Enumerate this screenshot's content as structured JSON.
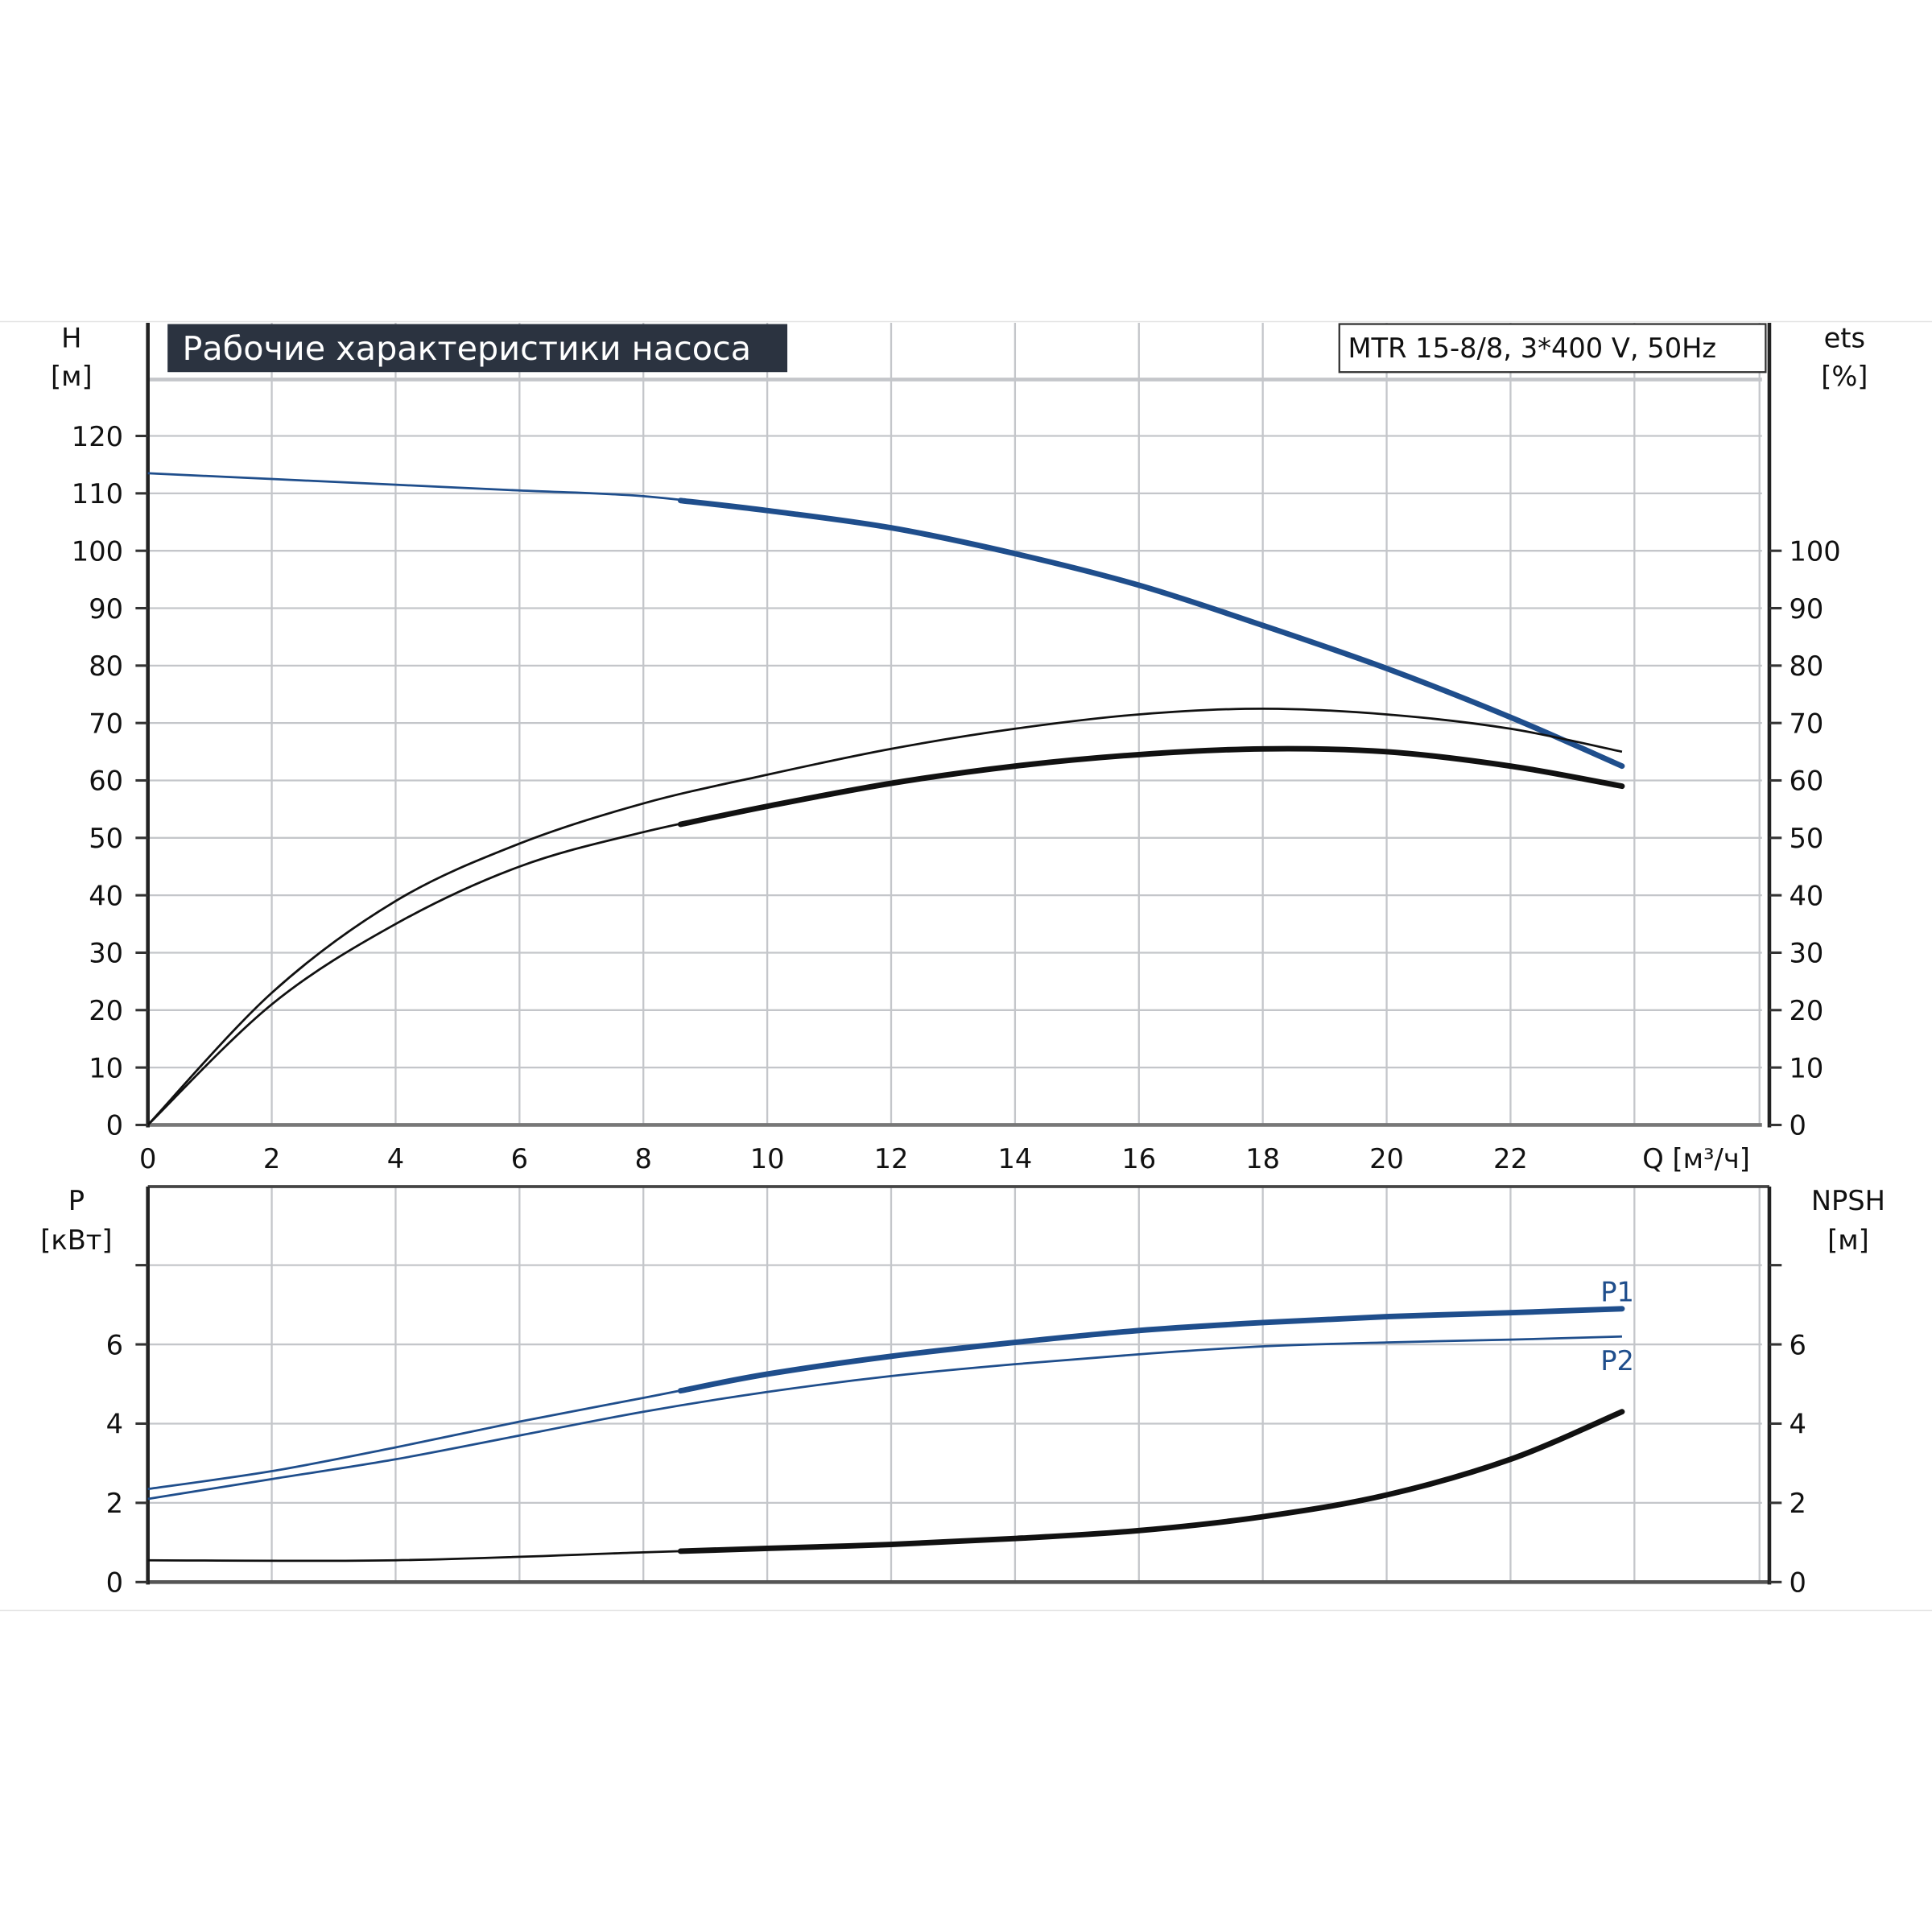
{
  "title": "Рабочие характеристики насоса",
  "model": "MTR 15-8/8, 3*400 V, 50Hz",
  "colors": {
    "blue": "#1f4e8c",
    "black": "#111111",
    "grid": "#c4c6ca",
    "title_bg": "#2b3340"
  },
  "chart_data": [
    {
      "type": "line",
      "panel": "head-efficiency",
      "xlabel": "Q [м³/ч]",
      "x_ticks": [
        "0",
        "2",
        "4",
        "6",
        "8",
        "10",
        "12",
        "14",
        "16",
        "18",
        "20",
        "22"
      ],
      "xlim": [
        0,
        26
      ],
      "ylabel_left": [
        "H",
        "[м]"
      ],
      "ylabel_right": [
        "ets",
        "[%]"
      ],
      "y_left_ticks": [
        "0",
        "10",
        "20",
        "30",
        "40",
        "50",
        "60",
        "70",
        "80",
        "90",
        "100",
        "110",
        "120"
      ],
      "y_right_ticks": [
        "0",
        "10",
        "20",
        "30",
        "40",
        "50",
        "60",
        "70",
        "80",
        "90",
        "100"
      ],
      "ylim": [
        0,
        130
      ],
      "grid": true,
      "series": [
        {
          "id": "head",
          "color": "#1f4e8c",
          "thick_from": 8.6,
          "x": [
            0,
            2,
            4,
            6,
            8,
            10,
            12,
            14,
            16,
            18,
            20,
            22,
            23.8
          ],
          "y": [
            113.5,
            112.5,
            111.5,
            110.5,
            109.5,
            107,
            104,
            99.5,
            94,
            87,
            79.5,
            71,
            62.5
          ]
        },
        {
          "id": "eta-pump",
          "color": "#111111",
          "thick_from": 99,
          "x": [
            0,
            2,
            4,
            6,
            8,
            10,
            12,
            14,
            16,
            18,
            20,
            22,
            23.8
          ],
          "y": [
            0,
            23,
            39,
            49,
            56,
            61,
            65.5,
            69,
            71.5,
            72.5,
            71.5,
            69,
            65
          ]
        },
        {
          "id": "eta-total",
          "color": "#111111",
          "thick_from": 8.6,
          "x": [
            0,
            2,
            4,
            6,
            8,
            10,
            12,
            14,
            16,
            18,
            20,
            22,
            23.8
          ],
          "y": [
            0,
            21,
            35,
            45,
            51,
            55.5,
            59.5,
            62.5,
            64.5,
            65.5,
            65,
            62.5,
            59
          ]
        }
      ]
    },
    {
      "type": "line",
      "panel": "power-npsh",
      "ylabel_left": [
        "P",
        "[кВт]"
      ],
      "ylabel_right": [
        "NPSH",
        "[м]"
      ],
      "y_left_ticks": [
        "0",
        "2",
        "4",
        "6"
      ],
      "y_right_ticks": [
        "0",
        "2",
        "4",
        "6"
      ],
      "ylim": [
        0,
        10
      ],
      "grid": true,
      "series": [
        {
          "id": "p1",
          "name": "P1",
          "color": "#1f4e8c",
          "thick_from": 8.6,
          "x": [
            0,
            2,
            4,
            6,
            8,
            10,
            12,
            14,
            16,
            18,
            20,
            22,
            23.8
          ],
          "y": [
            2.35,
            2.8,
            3.4,
            4.05,
            4.65,
            5.25,
            5.7,
            6.05,
            6.35,
            6.55,
            6.7,
            6.8,
            6.9
          ]
        },
        {
          "id": "p2",
          "name": "P2",
          "color": "#1f4e8c",
          "thick_from": 99,
          "x": [
            0,
            2,
            4,
            6,
            8,
            10,
            12,
            14,
            16,
            18,
            20,
            22,
            23.8
          ],
          "y": [
            2.1,
            2.6,
            3.1,
            3.7,
            4.3,
            4.8,
            5.2,
            5.5,
            5.75,
            5.95,
            6.05,
            6.12,
            6.2
          ]
        },
        {
          "id": "npsh",
          "color": "#111111",
          "thick_from": 8.6,
          "x": [
            0,
            4,
            8,
            10,
            12,
            14,
            16,
            18,
            20,
            22,
            23.8
          ],
          "y": [
            0.55,
            0.55,
            0.75,
            0.85,
            0.95,
            1.1,
            1.3,
            1.65,
            2.2,
            3.1,
            4.3
          ]
        }
      ]
    }
  ]
}
